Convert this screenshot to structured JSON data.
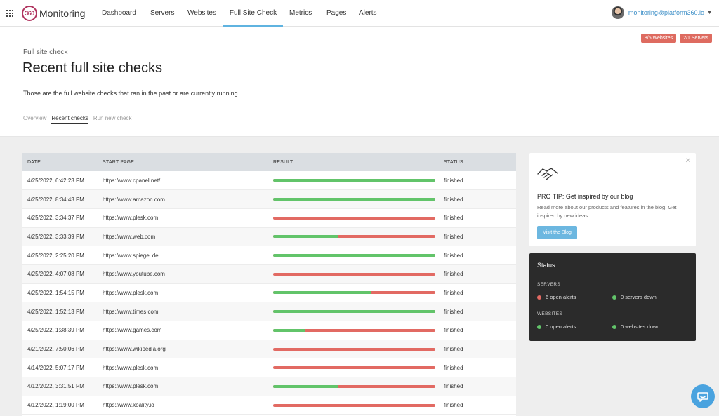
{
  "nav": {
    "brand_mark": "360",
    "brand": "Monitoring",
    "items": [
      {
        "label": "Dashboard"
      },
      {
        "label": "Servers"
      },
      {
        "label": "Websites"
      },
      {
        "label": "Full Site Check"
      },
      {
        "label": "Metrics"
      },
      {
        "label": "Pages"
      },
      {
        "label": "Alerts"
      }
    ],
    "active": "Full Site Check",
    "user_email": "monitoring@platform360.io"
  },
  "badges": [
    {
      "label": "8/5 Websites",
      "color": "#de6b60"
    },
    {
      "label": "2/1 Servers",
      "color": "#de6b60"
    }
  ],
  "header": {
    "eyebrow": "Full site check",
    "title": "Recent full site checks",
    "description": "Those are the full website checks that ran in the past or are currently running."
  },
  "subtabs": [
    {
      "label": "Overview"
    },
    {
      "label": "Recent checks"
    },
    {
      "label": "Run new check"
    }
  ],
  "table": {
    "columns": [
      "DATE",
      "START PAGE",
      "RESULT",
      "STATUS"
    ],
    "rows": [
      {
        "date": "4/25/2022, 6:42:23 PM",
        "page": "https://www.cpanel.net/",
        "success": 1.0,
        "status": "finished"
      },
      {
        "date": "4/25/2022, 8:34:43 PM",
        "page": "https://www.amazon.com",
        "success": 1.0,
        "status": "finished"
      },
      {
        "date": "4/25/2022, 3:34:37 PM",
        "page": "https://www.plesk.com",
        "success": 0.0,
        "status": "finished"
      },
      {
        "date": "4/25/2022, 3:33:39 PM",
        "page": "https://www.web.com",
        "success": 0.4,
        "status": "finished"
      },
      {
        "date": "4/25/2022, 2:25:20 PM",
        "page": "https://www.spiegel.de",
        "success": 1.0,
        "status": "finished"
      },
      {
        "date": "4/25/2022, 4:07:08 PM",
        "page": "https://www.youtube.com",
        "success": 0.0,
        "status": "finished"
      },
      {
        "date": "4/25/2022, 1:54:15 PM",
        "page": "https://www.plesk.com",
        "success": 0.6,
        "status": "finished"
      },
      {
        "date": "4/25/2022, 1:52:13 PM",
        "page": "https://www.times.com",
        "success": 1.0,
        "status": "finished"
      },
      {
        "date": "4/25/2022, 1:38:39 PM",
        "page": "https://www.games.com",
        "success": 0.2,
        "status": "finished"
      },
      {
        "date": "4/21/2022, 7:50:06 PM",
        "page": "https://www.wikipedia.org",
        "success": 0.0,
        "status": "finished"
      },
      {
        "date": "4/14/2022, 5:07:17 PM",
        "page": "https://www.plesk.com",
        "success": 0.0,
        "status": "finished"
      },
      {
        "date": "4/12/2022, 3:31:51 PM",
        "page": "https://www.plesk.com",
        "success": 0.4,
        "status": "finished"
      },
      {
        "date": "4/12/2022, 1:19:00 PM",
        "page": "https://www.koality.io",
        "success": 0.0,
        "status": "finished"
      }
    ]
  },
  "tip": {
    "title": "PRO TIP: Get inspired by our blog",
    "text": "Read more about our products and features in the blog. Get inspired by new ideas.",
    "button": "Visit the Blog"
  },
  "status": {
    "title": "Status",
    "servers_label": "SERVERS",
    "servers_alerts": "6 open alerts",
    "servers_down": "0 servers down",
    "websites_label": "WEBSITES",
    "websites_alerts": "0 open alerts",
    "websites_down": "0 websites down"
  },
  "colors": {
    "success": "#62c46a",
    "failure": "#e26a63",
    "accent": "#5fb3e0"
  }
}
